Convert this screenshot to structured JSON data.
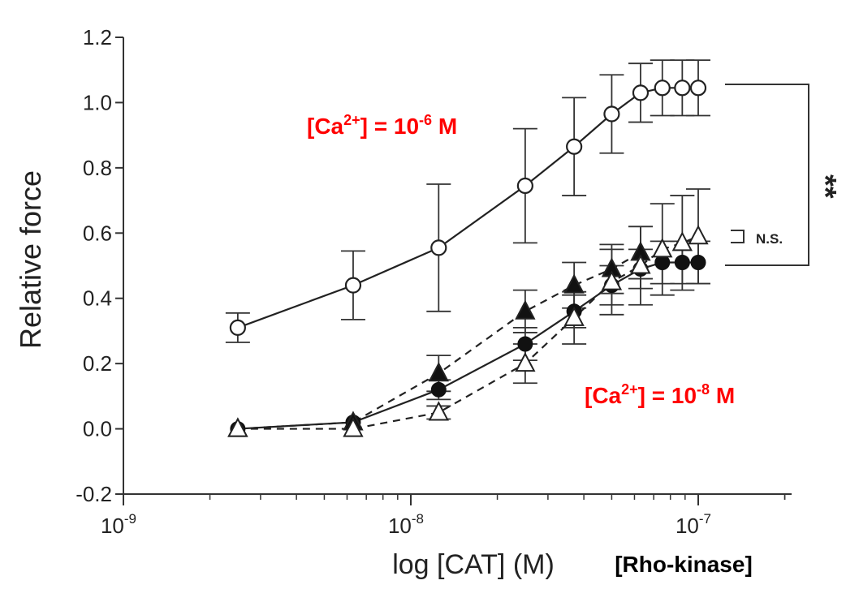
{
  "chart_data": {
    "type": "line",
    "xscale": "log",
    "xlim": [
      1e-09,
      2e-07
    ],
    "ylim": [
      -0.2,
      1.2
    ],
    "grid": false,
    "ylabel": "Relative force",
    "xlabel": "log [CAT] (M)",
    "x_extra_label": "[Rho-kinase]",
    "xticks": [
      {
        "value": 1e-09,
        "base": "10",
        "exp": "-9"
      },
      {
        "value": 1e-08,
        "base": "10",
        "exp": "-8"
      },
      {
        "value": 1e-07,
        "base": "10",
        "exp": "-7"
      }
    ],
    "yticks": [
      "-0.2",
      "0.0",
      "0.2",
      "0.4",
      "0.6",
      "0.8",
      "1.0",
      "1.2"
    ],
    "ytick_values": [
      -0.2,
      0.0,
      0.2,
      0.4,
      0.6,
      0.8,
      1.0,
      1.2
    ],
    "series": [
      {
        "marker": "open-circle",
        "line": "solid",
        "x": [
          2.5e-09,
          6.3e-09,
          1.25e-08,
          2.5e-08,
          3.7e-08,
          5e-08,
          6.3e-08,
          7.5e-08,
          8.8e-08,
          1e-07
        ],
        "y": [
          0.31,
          0.44,
          0.555,
          0.745,
          0.865,
          0.965,
          1.03,
          1.045,
          1.045,
          1.045
        ],
        "err": [
          0.045,
          0.105,
          0.195,
          0.175,
          0.15,
          0.12,
          0.09,
          0.085,
          0.085,
          0.085
        ]
      },
      {
        "marker": "filled-circle",
        "line": "solid",
        "x": [
          2.5e-09,
          6.3e-09,
          1.25e-08,
          2.5e-08,
          3.7e-08,
          5e-08,
          6.3e-08,
          7.5e-08,
          8.8e-08,
          1e-07
        ],
        "y": [
          0.0,
          0.02,
          0.12,
          0.26,
          0.36,
          0.44,
          0.49,
          0.51,
          0.51,
          0.51
        ],
        "err": [
          0.0,
          0.0,
          0.03,
          0.05,
          0.05,
          0.06,
          0.06,
          0.065,
          0.065,
          0.065
        ]
      },
      {
        "marker": "filled-triangle",
        "line": "dashed",
        "x": [
          2.5e-09,
          6.3e-09,
          1.25e-08,
          2.5e-08,
          3.7e-08,
          5e-08,
          6.3e-08
        ],
        "y": [
          0.0,
          0.02,
          0.17,
          0.36,
          0.44,
          0.49,
          0.54
        ],
        "err": [
          0.0,
          0.0,
          0.055,
          0.065,
          0.07,
          0.075,
          0.08
        ]
      },
      {
        "marker": "open-triangle",
        "line": "dashed",
        "x": [
          2.5e-09,
          6.3e-09,
          1.25e-08,
          2.5e-08,
          3.7e-08,
          5e-08,
          6.3e-08,
          7.5e-08,
          8.8e-08,
          1e-07
        ],
        "y": [
          0.0,
          0.0,
          0.05,
          0.2,
          0.34,
          0.45,
          0.5,
          0.55,
          0.57,
          0.59
        ],
        "err": [
          0.0,
          0.0,
          0.02,
          0.06,
          0.08,
          0.1,
          0.12,
          0.14,
          0.145,
          0.145
        ]
      }
    ],
    "annotations": {
      "high_ca": {
        "pre": "[Ca",
        "sup1": "2+",
        "mid": "] = 10",
        "sup2": "-6",
        "post": " M",
        "color": "#ff0000"
      },
      "low_ca": {
        "pre": "[Ca",
        "sup1": "2+",
        "mid": "] = 10",
        "sup2": "-8",
        "post": " M",
        "color": "#ff0000"
      },
      "ns_label": "N.S.",
      "significance": "**"
    }
  }
}
